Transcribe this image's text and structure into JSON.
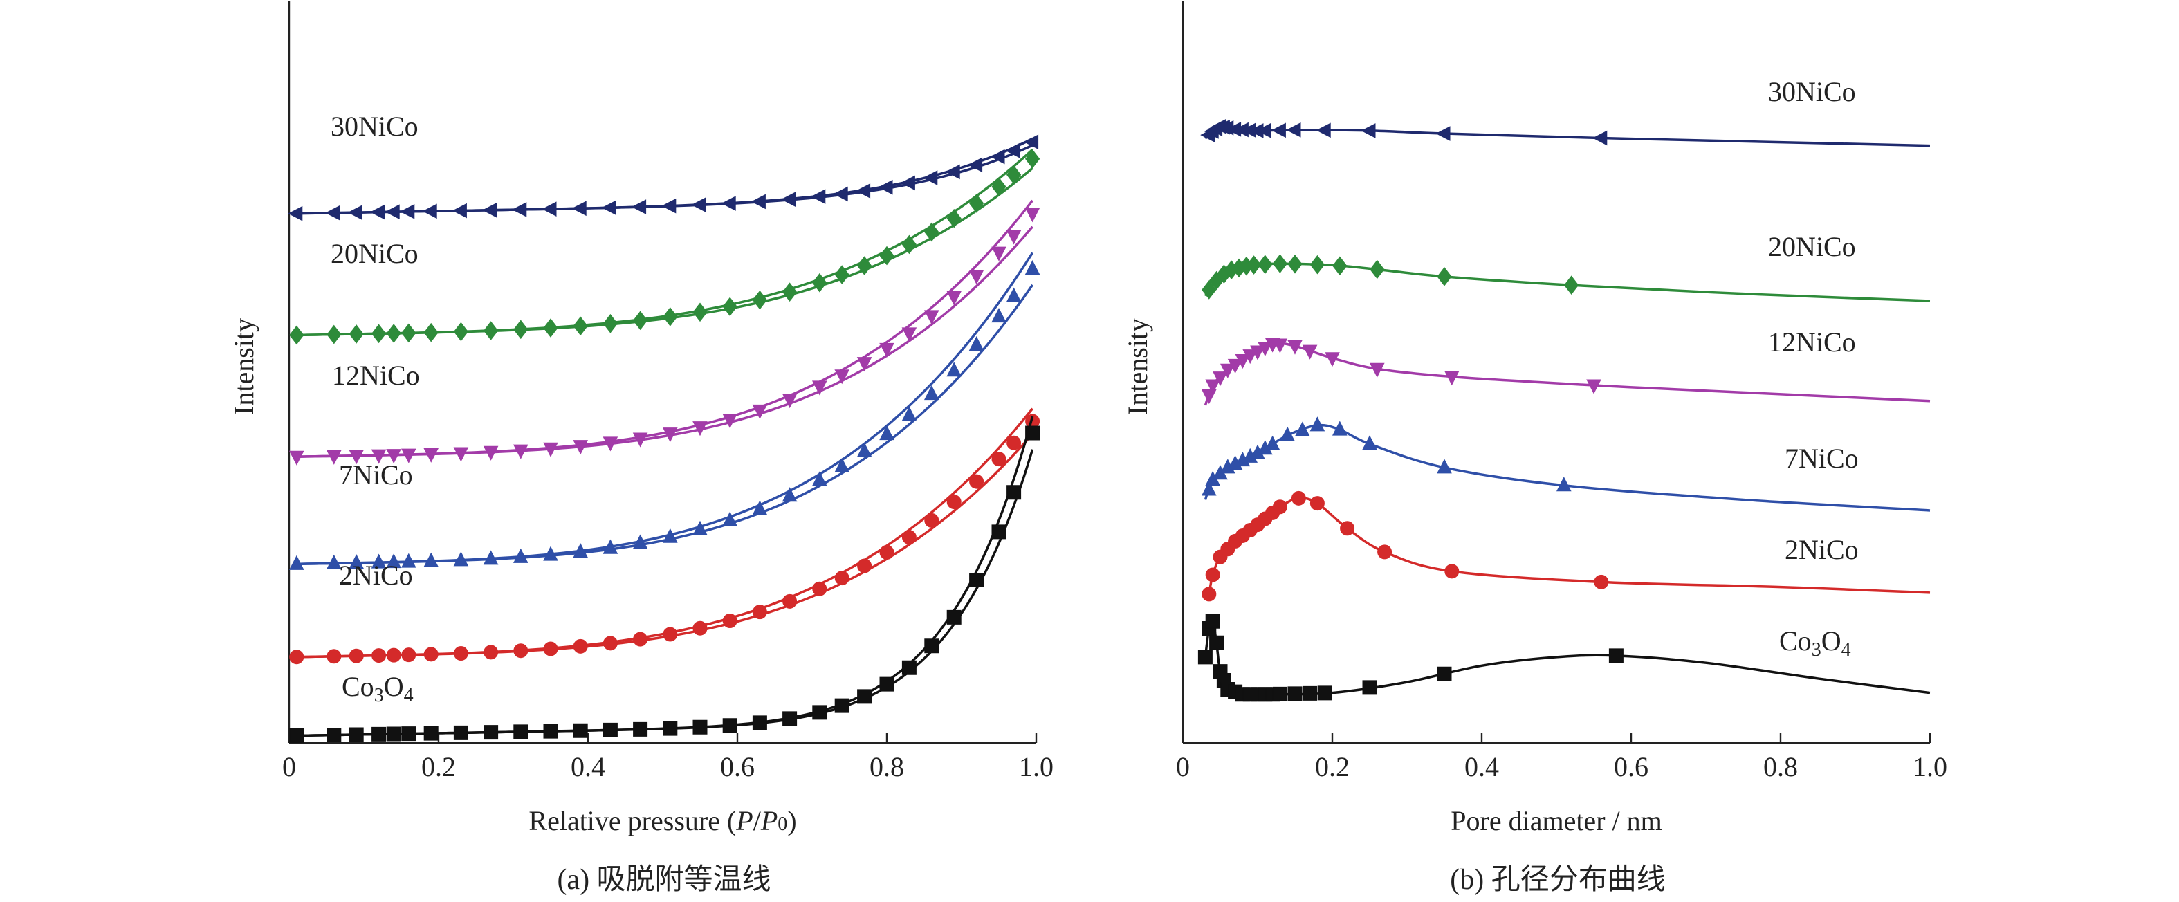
{
  "chart_data": [
    {
      "id": "a",
      "type": "line",
      "caption": "(a) 吸脱附等温线",
      "xlabel_parts": [
        "Relative pressure (",
        "P",
        "/",
        "P",
        "0",
        ")"
      ],
      "ylabel": "Intensity",
      "xlim": [
        0,
        1.0
      ],
      "y_scale": "arbitrary, curves vertically offset",
      "grid": false,
      "legend": "labels placed beside each curve",
      "x_ticks": [
        "0",
        "0.2",
        "0.4",
        "0.6",
        "0.8",
        "1.0"
      ],
      "series": [
        {
          "name": "30NiCo",
          "name_html": "30NiCo",
          "color": "#1f2a6e",
          "marker": "triangle-left",
          "baseline": 0.74,
          "amp": 0.08,
          "shape": "mild"
        },
        {
          "name": "20NiCo",
          "name_html": "20NiCo",
          "color": "#2e8b3a",
          "marker": "diamond",
          "baseline": 0.57,
          "amp": 0.22,
          "shape": "moderate"
        },
        {
          "name": "12NiCo",
          "name_html": "12NiCo",
          "color": "#a23ba8",
          "marker": "triangle-down",
          "baseline": 0.4,
          "amp": 0.31,
          "shape": "moderate"
        },
        {
          "name": "7NiCo",
          "name_html": "7NiCo",
          "color": "#2f4fa8",
          "marker": "triangle-up",
          "baseline": 0.25,
          "amp": 0.38,
          "shape": "moderate"
        },
        {
          "name": "2NiCo",
          "name_html": "2NiCo",
          "color": "#d42a2a",
          "marker": "circle",
          "baseline": 0.12,
          "amp": 0.3,
          "shape": "moderate"
        },
        {
          "name": "Co3O4",
          "name_parts": [
            "Co",
            "3",
            "O",
            "4"
          ],
          "color": "#111111",
          "marker": "square",
          "baseline": 0.01,
          "amp": 0.4,
          "shape": "steep"
        }
      ]
    },
    {
      "id": "b",
      "type": "line",
      "caption": "(b) 孔径分布曲线",
      "xlabel": "Pore diameter / nm",
      "ylabel": "Intensity",
      "xlim": [
        0,
        1.0
      ],
      "y_scale": "arbitrary, curves vertically offset",
      "grid": false,
      "legend": "labels placed beside each curve",
      "x_ticks": [
        "0",
        "0.2",
        "0.4",
        "0.6",
        "0.8",
        "1.0"
      ],
      "series": [
        {
          "name": "30NiCo",
          "color": "#1f2a6e",
          "marker": "triangle-left",
          "curve": [
            [
              0.03,
              0.845
            ],
            [
              0.04,
              0.855
            ],
            [
              0.05,
              0.862
            ],
            [
              0.07,
              0.858
            ],
            [
              0.1,
              0.856
            ],
            [
              0.15,
              0.857
            ],
            [
              0.25,
              0.856
            ],
            [
              0.35,
              0.852
            ],
            [
              0.55,
              0.846
            ],
            [
              0.75,
              0.841
            ],
            [
              1.0,
              0.835
            ]
          ],
          "markers_x": [
            0.035,
            0.04,
            0.045,
            0.05,
            0.055,
            0.06,
            0.07,
            0.08,
            0.09,
            0.1,
            0.11,
            0.13,
            0.15,
            0.19,
            0.25,
            0.35,
            0.56
          ]
        },
        {
          "name": "20NiCo",
          "color": "#2e8b3a",
          "marker": "diamond",
          "curve": [
            [
              0.03,
              0.625
            ],
            [
              0.04,
              0.642
            ],
            [
              0.06,
              0.66
            ],
            [
              0.09,
              0.668
            ],
            [
              0.13,
              0.67
            ],
            [
              0.2,
              0.668
            ],
            [
              0.26,
              0.662
            ],
            [
              0.35,
              0.652
            ],
            [
              0.52,
              0.64
            ],
            [
              0.75,
              0.628
            ],
            [
              1.0,
              0.618
            ]
          ],
          "markers_x": [
            0.035,
            0.045,
            0.055,
            0.065,
            0.075,
            0.085,
            0.095,
            0.11,
            0.13,
            0.15,
            0.18,
            0.21,
            0.26,
            0.35,
            0.52
          ]
        },
        {
          "name": "12NiCo",
          "color": "#a23ba8",
          "marker": "triangle-down",
          "curve": [
            [
              0.03,
              0.472
            ],
            [
              0.04,
              0.5
            ],
            [
              0.06,
              0.522
            ],
            [
              0.09,
              0.542
            ],
            [
              0.12,
              0.558
            ],
            [
              0.15,
              0.555
            ],
            [
              0.2,
              0.538
            ],
            [
              0.26,
              0.523
            ],
            [
              0.36,
              0.512
            ],
            [
              0.55,
              0.5
            ],
            [
              0.75,
              0.49
            ],
            [
              1.0,
              0.478
            ]
          ],
          "markers_x": [
            0.035,
            0.04,
            0.05,
            0.06,
            0.07,
            0.08,
            0.09,
            0.1,
            0.11,
            0.12,
            0.13,
            0.15,
            0.17,
            0.2,
            0.26,
            0.36,
            0.55
          ]
        },
        {
          "name": "7NiCo",
          "color": "#2f4fa8",
          "marker": "triangle-up",
          "curve": [
            [
              0.03,
              0.34
            ],
            [
              0.04,
              0.368
            ],
            [
              0.06,
              0.385
            ],
            [
              0.1,
              0.405
            ],
            [
              0.14,
              0.43
            ],
            [
              0.18,
              0.444
            ],
            [
              0.21,
              0.438
            ],
            [
              0.25,
              0.418
            ],
            [
              0.35,
              0.385
            ],
            [
              0.51,
              0.36
            ],
            [
              0.75,
              0.34
            ],
            [
              1.0,
              0.325
            ]
          ],
          "markers_x": [
            0.035,
            0.04,
            0.05,
            0.06,
            0.07,
            0.08,
            0.09,
            0.1,
            0.11,
            0.12,
            0.14,
            0.16,
            0.18,
            0.21,
            0.25,
            0.35,
            0.51
          ]
        },
        {
          "name": "2NiCo",
          "color": "#d42a2a",
          "marker": "circle",
          "curve": [
            [
              0.035,
              0.208
            ],
            [
              0.04,
              0.235
            ],
            [
              0.05,
              0.26
            ],
            [
              0.07,
              0.282
            ],
            [
              0.1,
              0.305
            ],
            [
              0.13,
              0.33
            ],
            [
              0.155,
              0.342
            ],
            [
              0.18,
              0.335
            ],
            [
              0.22,
              0.3
            ],
            [
              0.27,
              0.267
            ],
            [
              0.36,
              0.24
            ],
            [
              0.56,
              0.225
            ],
            [
              0.8,
              0.218
            ],
            [
              1.0,
              0.21
            ]
          ],
          "markers_x": [
            0.035,
            0.04,
            0.05,
            0.06,
            0.07,
            0.08,
            0.09,
            0.1,
            0.11,
            0.12,
            0.13,
            0.155,
            0.18,
            0.22,
            0.27,
            0.36,
            0.56
          ]
        },
        {
          "name": "Co3O4",
          "name_parts": [
            "Co",
            "3",
            "O",
            "4"
          ],
          "color": "#111111",
          "marker": "square",
          "curve": [
            [
              0.03,
              0.12
            ],
            [
              0.035,
              0.16
            ],
            [
              0.04,
              0.17
            ],
            [
              0.045,
              0.14
            ],
            [
              0.05,
              0.1
            ],
            [
              0.06,
              0.075
            ],
            [
              0.08,
              0.068
            ],
            [
              0.12,
              0.068
            ],
            [
              0.2,
              0.07
            ],
            [
              0.3,
              0.085
            ],
            [
              0.4,
              0.108
            ],
            [
              0.5,
              0.12
            ],
            [
              0.58,
              0.122
            ],
            [
              0.7,
              0.112
            ],
            [
              0.85,
              0.09
            ],
            [
              1.0,
              0.07
            ]
          ],
          "markers_x": [
            0.03,
            0.035,
            0.04,
            0.045,
            0.05,
            0.055,
            0.06,
            0.07,
            0.08,
            0.09,
            0.1,
            0.11,
            0.12,
            0.13,
            0.15,
            0.17,
            0.19,
            0.25,
            0.35,
            0.58
          ]
        }
      ]
    }
  ]
}
